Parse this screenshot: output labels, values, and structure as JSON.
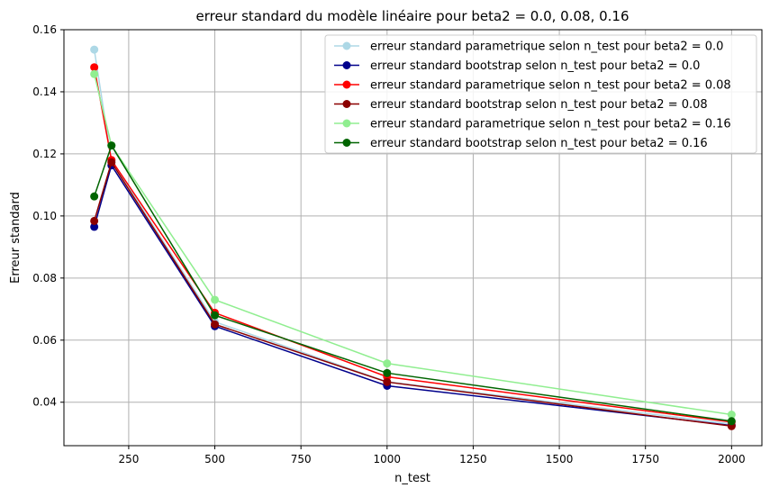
{
  "chart_data": {
    "type": "line",
    "title": "erreur standard du modèle linéaire pour beta2 = 0.0, 0.08, 0.16",
    "xlabel": "n_test",
    "ylabel": "Erreur standard",
    "xlim": [
      62,
      2088
    ],
    "ylim": [
      0.026,
      0.16
    ],
    "xticks": [
      250,
      500,
      750,
      1000,
      1250,
      1500,
      1750,
      2000
    ],
    "yticks": [
      0.04,
      0.06,
      0.08,
      0.1,
      0.12,
      0.14,
      0.16
    ],
    "xtick_labels": [
      "250",
      "500",
      "750",
      "1000",
      "1250",
      "1500",
      "1750",
      "2000"
    ],
    "ytick_labels": [
      "0.04",
      "0.06",
      "0.08",
      "0.10",
      "0.12",
      "0.14",
      "0.16"
    ],
    "grid": true,
    "legend_position": "top-right",
    "x": [
      150,
      200,
      500,
      1000,
      2000
    ],
    "series": [
      {
        "name": "erreur standard parametrique selon n_test pour beta2 = 0.0",
        "color": "#add8e6",
        "values": [
          0.1536,
          0.1178,
          0.0659,
          0.0466,
          0.033
        ]
      },
      {
        "name": "erreur standard bootstrap selon n_test pour beta2 = 0.0",
        "color": "#00008b",
        "values": [
          0.0965,
          0.1163,
          0.0645,
          0.0453,
          0.0325
        ]
      },
      {
        "name": "erreur standard parametrique selon n_test pour beta2 = 0.08",
        "color": "#ff0000",
        "values": [
          0.1479,
          0.118,
          0.0688,
          0.0482,
          0.0336
        ]
      },
      {
        "name": "erreur standard bootstrap selon n_test pour beta2 = 0.08",
        "color": "#8b0000",
        "values": [
          0.0984,
          0.1173,
          0.0651,
          0.0465,
          0.0323
        ]
      },
      {
        "name": "erreur standard parametrique selon n_test pour beta2 = 0.16",
        "color": "#90ee90",
        "values": [
          0.1457,
          0.1227,
          0.073,
          0.0525,
          0.036
        ]
      },
      {
        "name": "erreur standard bootstrap selon n_test pour beta2 = 0.16",
        "color": "#006400",
        "values": [
          0.1063,
          0.1227,
          0.068,
          0.0494,
          0.0339
        ]
      }
    ]
  }
}
